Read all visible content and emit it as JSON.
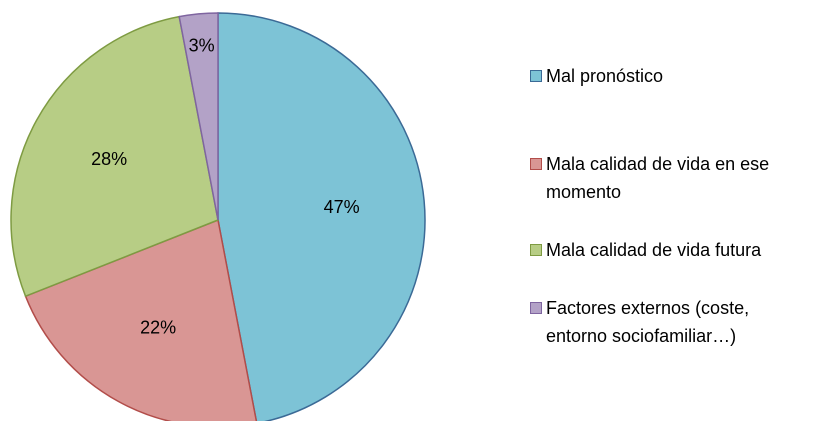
{
  "chart_data": {
    "type": "pie",
    "categories": [
      "Mal pronóstico",
      "Mala calidad de vida en ese momento",
      "Mala calidad de vida futura",
      "Factores externos (coste, entorno sociofamiliar…)"
    ],
    "values": [
      47,
      22,
      28,
      3
    ],
    "value_labels": [
      "47%",
      "22%",
      "28%",
      "3%"
    ],
    "colors": [
      "#7DC3D6",
      "#D99694",
      "#B7CD85",
      "#B3A2C7"
    ],
    "edge_colors": [
      "#3B6A96",
      "#B24D4A",
      "#7E9B42",
      "#7F65A0"
    ],
    "legend": "right"
  }
}
